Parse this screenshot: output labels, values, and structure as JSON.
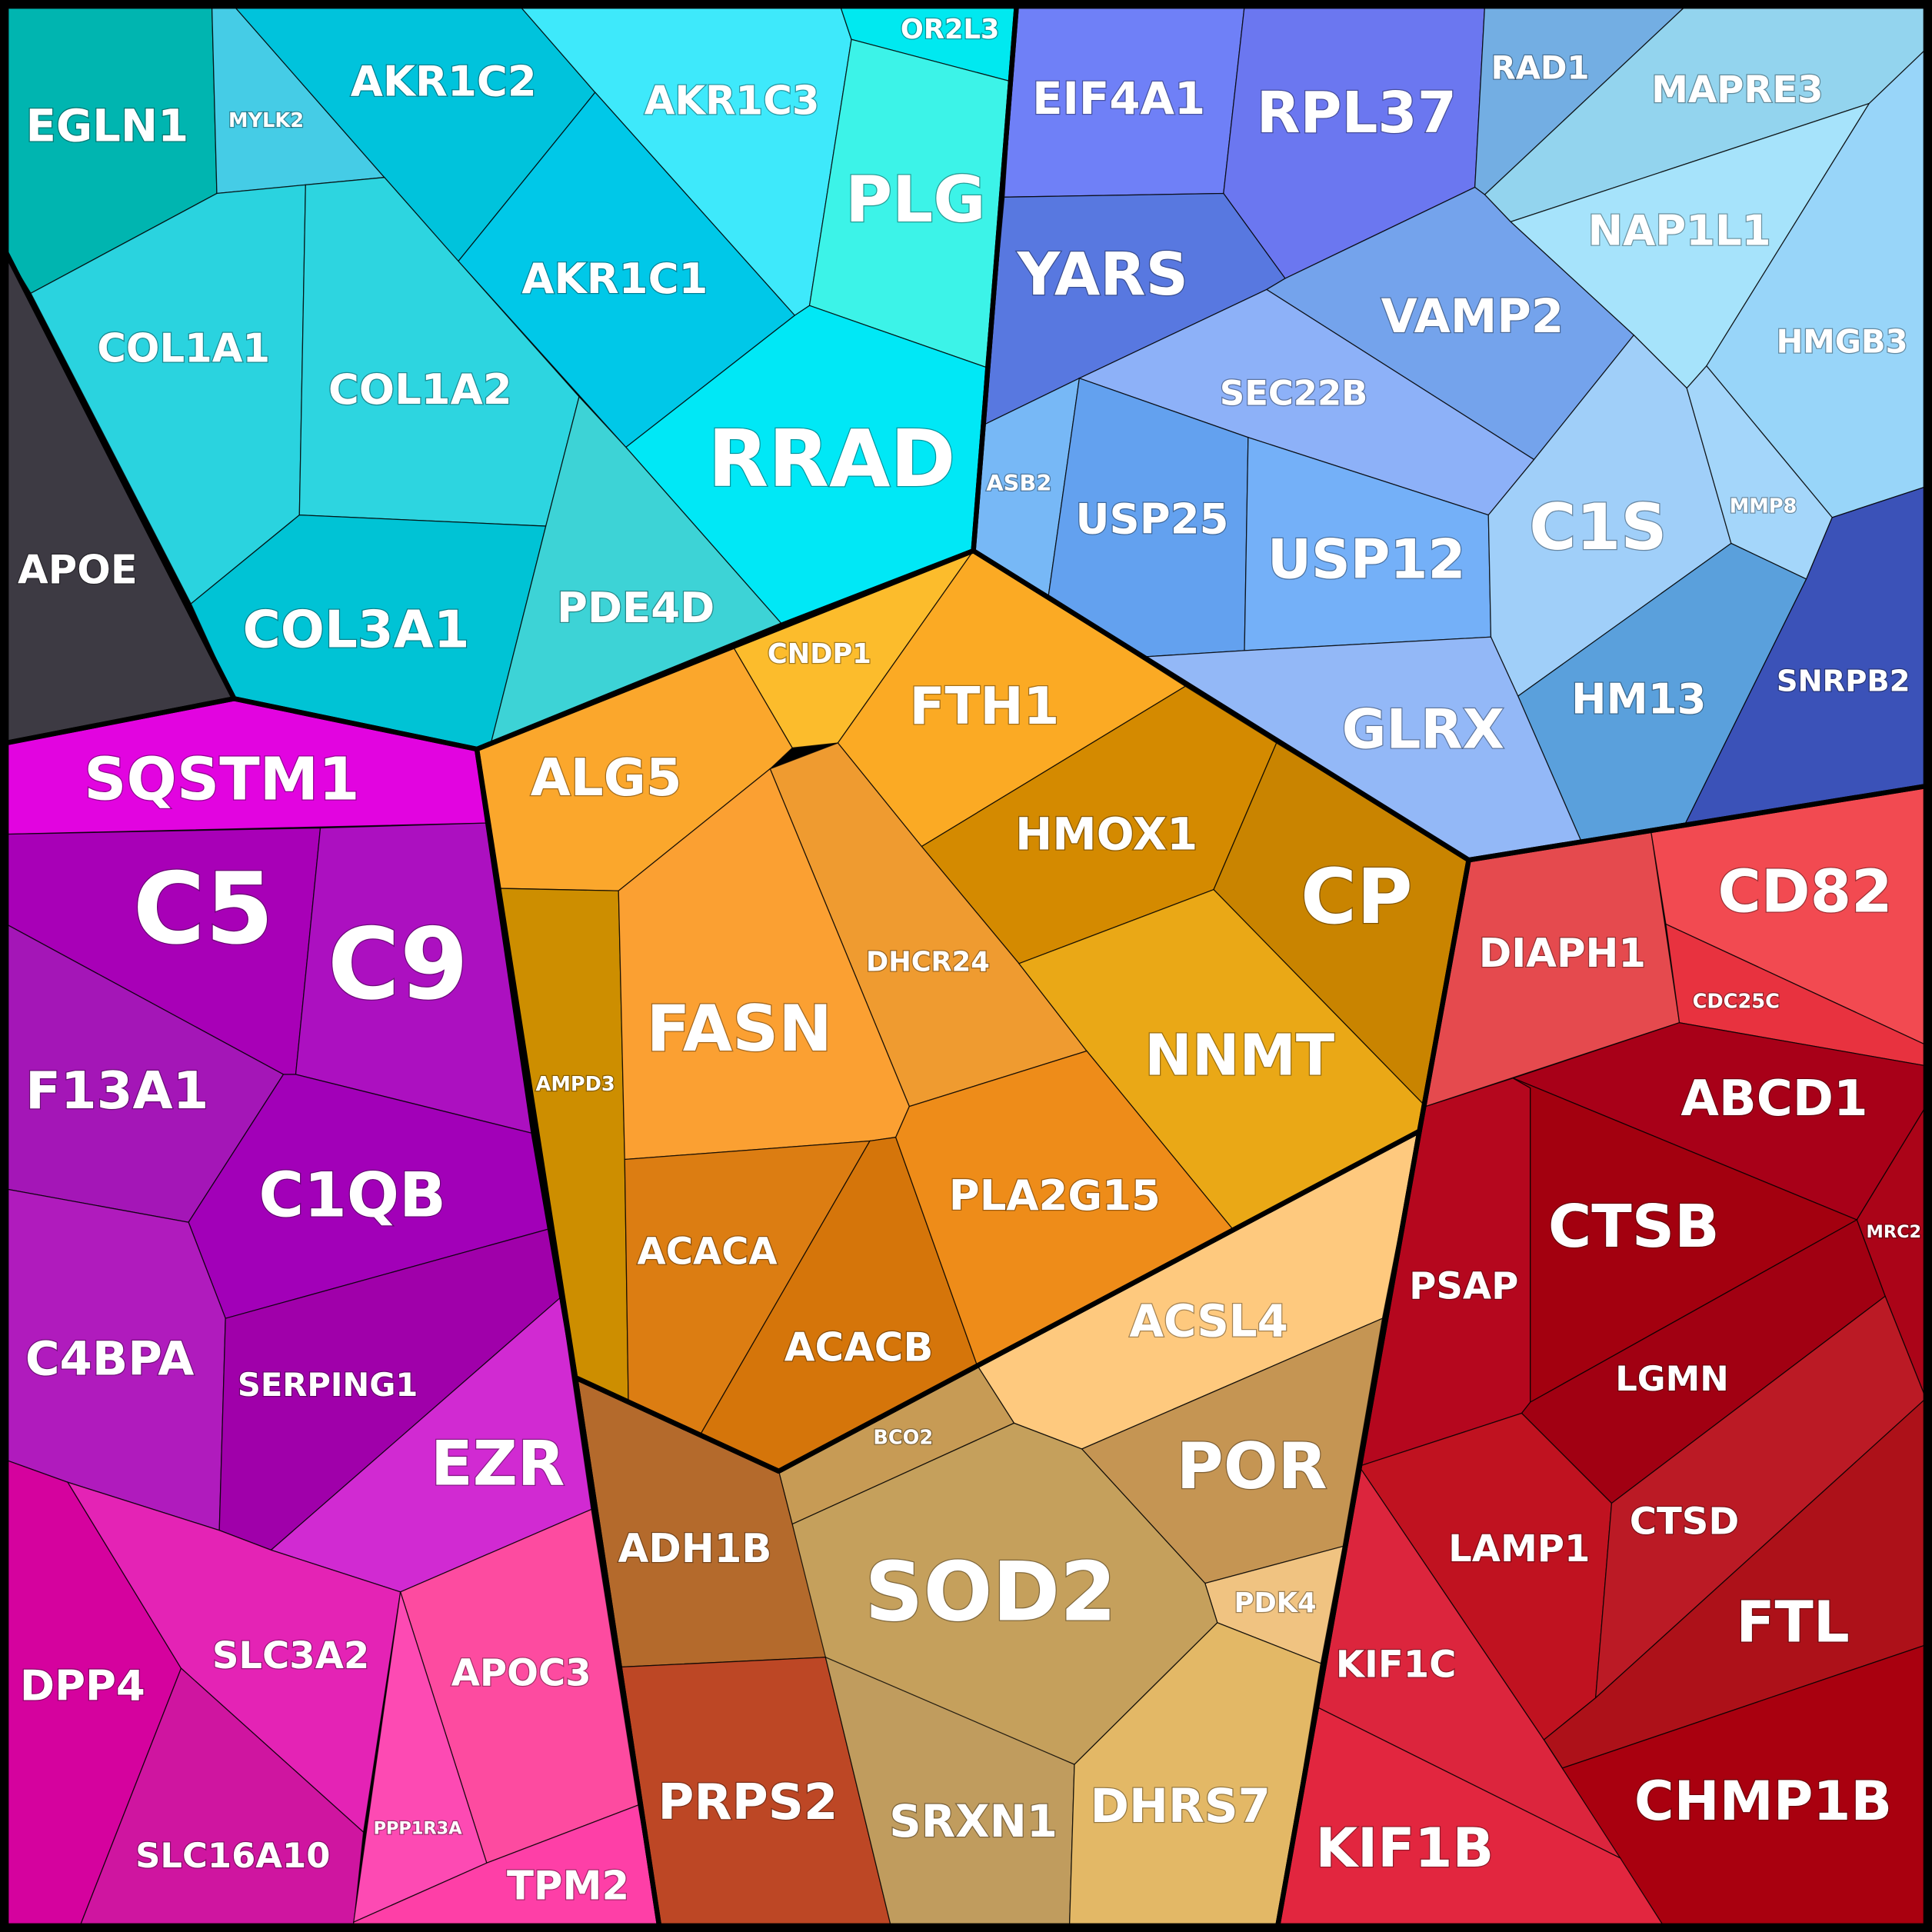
{
  "cells": [
    {
      "label": "EGLN1",
      "color": "#00b5b0"
    },
    {
      "label": "MYLK2",
      "color": "#45cce6"
    },
    {
      "label": "AKR1C2",
      "color": "#00c3dc"
    },
    {
      "label": "AKR1C3",
      "color": "#3ee9fb"
    },
    {
      "label": "OR2L3",
      "color": "#00e9f0"
    },
    {
      "label": "PLG",
      "color": "#3cf3e8"
    },
    {
      "label": "AKR1C1",
      "color": "#00c8e8"
    },
    {
      "label": "RRAD",
      "color": "#00e8f6"
    },
    {
      "label": "COL1A1",
      "color": "#2ad3df"
    },
    {
      "label": "COL1A2",
      "color": "#2dd5e0"
    },
    {
      "label": "COL3A1",
      "color": "#00c3d5"
    },
    {
      "label": "PDE4D",
      "color": "#3dd3d6"
    },
    {
      "label": "APOE",
      "color": "#3d3a43"
    },
    {
      "label": "EIF4A1",
      "color": "#6f80f7"
    },
    {
      "label": "RPL37",
      "color": "#6b77f0"
    },
    {
      "label": "YARS",
      "color": "#5878e0"
    },
    {
      "label": "RAD1",
      "color": "#73aee3"
    },
    {
      "label": "MAPRE3",
      "color": "#93d4ee"
    },
    {
      "label": "NAP1L1",
      "color": "#a6e3fb"
    },
    {
      "label": "HMGB3",
      "color": "#98d5f9"
    },
    {
      "label": "VAMP2",
      "color": "#74a3ec"
    },
    {
      "label": "SEC22B",
      "color": "#8db1f8"
    },
    {
      "label": "ASB2",
      "color": "#77b8f6"
    },
    {
      "label": "USP25",
      "color": "#63a1ef"
    },
    {
      "label": "USP12",
      "color": "#74b0f8"
    },
    {
      "label": "C1S",
      "color": "#a0cff9"
    },
    {
      "label": "MMP8",
      "color": "#a4d6fa"
    },
    {
      "label": "HM13",
      "color": "#5aa0dc"
    },
    {
      "label": "GLRX",
      "color": "#93b8f7"
    },
    {
      "label": "SNRPB2",
      "color": "#3b52b8"
    },
    {
      "label": "SQSTM1",
      "color": "#e204e0"
    },
    {
      "label": "C5",
      "color": "#a800b7"
    },
    {
      "label": "C9",
      "color": "#ac10c0"
    },
    {
      "label": "F13A1",
      "color": "#a416b7"
    },
    {
      "label": "C1QB",
      "color": "#a200b8"
    },
    {
      "label": "C4BPA",
      "color": "#b01bbd"
    },
    {
      "label": "SERPING1",
      "color": "#a000aa"
    },
    {
      "label": "EZR",
      "color": "#d12ad2"
    },
    {
      "label": "DPP4",
      "color": "#d5029e"
    },
    {
      "label": "SLC3A2",
      "color": "#e423b5"
    },
    {
      "label": "SLC16A10",
      "color": "#cf15a0"
    },
    {
      "label": "APOC3",
      "color": "#fd4ba0"
    },
    {
      "label": "PPP1R3A",
      "color": "#fd4ab3"
    },
    {
      "label": "TPM2",
      "color": "#fe3fa7"
    },
    {
      "label": "CNDP1",
      "color": "#fcbc2c"
    },
    {
      "label": "ALG5",
      "color": "#fba72c"
    },
    {
      "label": "FTH1",
      "color": "#fbaa24"
    },
    {
      "label": "HMOX1",
      "color": "#d48a00"
    },
    {
      "label": "CP",
      "color": "#c98400"
    },
    {
      "label": "DHCR24",
      "color": "#ef9b30"
    },
    {
      "label": "NNMT",
      "color": "#eaa816"
    },
    {
      "label": "AMPD3",
      "color": "#cd8e00"
    },
    {
      "label": "FASN",
      "color": "#fba032"
    },
    {
      "label": "ACACA",
      "color": "#dc7d12"
    },
    {
      "label": "ACACB",
      "color": "#d5750a"
    },
    {
      "label": "PLA2G15",
      "color": "#ee8c19"
    },
    {
      "label": "ACSL4",
      "color": "#fec97e"
    },
    {
      "label": "BCO2",
      "color": "#c79b55"
    },
    {
      "label": "POR",
      "color": "#c59553"
    },
    {
      "label": "PDK4",
      "color": "#f0c381"
    },
    {
      "label": "SOD2",
      "color": "#c5a05c"
    },
    {
      "label": "ADH1B",
      "color": "#b46a2c"
    },
    {
      "label": "PRPS2",
      "color": "#bd4725"
    },
    {
      "label": "SRXN1",
      "color": "#c09c5e"
    },
    {
      "label": "DHRS7",
      "color": "#e3b866"
    },
    {
      "label": "DIAPH1",
      "color": "#e54a4e"
    },
    {
      "label": "CD82",
      "color": "#f24a51"
    },
    {
      "label": "CDC25C",
      "color": "#e8323f"
    },
    {
      "label": "ABCD1",
      "color": "#a80018"
    },
    {
      "label": "MRC2",
      "color": "#ab0418"
    },
    {
      "label": "PSAP",
      "color": "#b5071e"
    },
    {
      "label": "CTSB",
      "color": "#a3000f"
    },
    {
      "label": "LGMN",
      "color": "#a10012"
    },
    {
      "label": "LAMP1",
      "color": "#c01220"
    },
    {
      "label": "CTSD",
      "color": "#bb1a25"
    },
    {
      "label": "FTL",
      "color": "#ad1119"
    },
    {
      "label": "CHMP1B",
      "color": "#a9000f"
    },
    {
      "label": "KIF1C",
      "color": "#dc253d"
    },
    {
      "label": "KIF1B",
      "color": "#e2263f"
    }
  ]
}
